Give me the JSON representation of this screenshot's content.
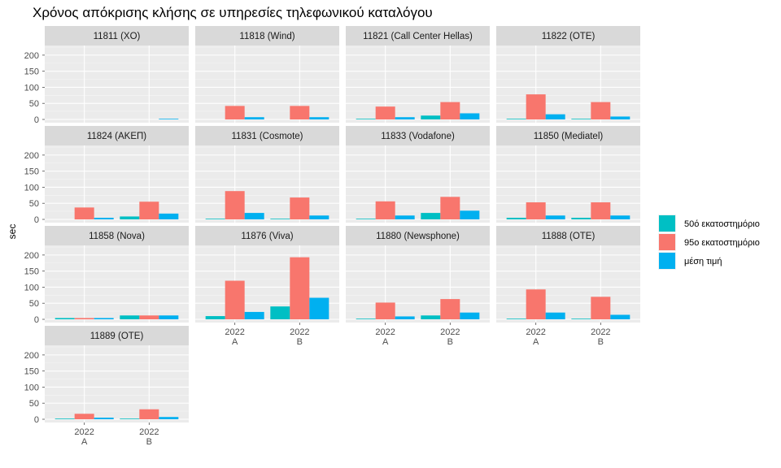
{
  "chart_data": {
    "type": "bar",
    "title": "Χρόνος απόκρισης κλήσης σε υπηρεσίες τηλεφωνικού καταλόγου",
    "xlabel": "",
    "ylabel": "sec",
    "ylim": [
      0,
      230
    ],
    "yticks": [
      0,
      50,
      100,
      150,
      200
    ],
    "categories": [
      "2022\nA",
      "2022\nB"
    ],
    "series_names": [
      "50ό εκατοστημόριο",
      "95ο εκατοστημόριο",
      "μέση τιμή"
    ],
    "colors": [
      "#00BFC4",
      "#F8766D",
      "#00B0F0"
    ],
    "panels": [
      {
        "name": "11811 (XO)",
        "values": [
          [
            null,
            null,
            null
          ],
          [
            null,
            null,
            2
          ]
        ]
      },
      {
        "name": "11818 (Wind)",
        "values": [
          [
            null,
            42,
            7
          ],
          [
            null,
            42,
            7
          ]
        ]
      },
      {
        "name": "11821 (Call Center Hellas)",
        "values": [
          [
            2,
            40,
            7
          ],
          [
            12,
            54,
            19
          ]
        ]
      },
      {
        "name": "11822 (OTE)",
        "values": [
          [
            2,
            78,
            16
          ],
          [
            2,
            54,
            9
          ]
        ]
      },
      {
        "name": "11824 (ΑΚΕΠ)",
        "values": [
          [
            null,
            37,
            5
          ],
          [
            9,
            55,
            18
          ]
        ]
      },
      {
        "name": "11831 (Cosmote)",
        "values": [
          [
            2,
            88,
            20
          ],
          [
            2,
            68,
            12
          ]
        ]
      },
      {
        "name": "11833 (Vodafone)",
        "values": [
          [
            2,
            56,
            12
          ],
          [
            20,
            70,
            27
          ]
        ]
      },
      {
        "name": "11850 (Mediatel)",
        "values": [
          [
            5,
            53,
            12
          ],
          [
            5,
            53,
            12
          ]
        ]
      },
      {
        "name": "11858 (Nova)",
        "values": [
          [
            4,
            4,
            4
          ],
          [
            12,
            12,
            12
          ]
        ]
      },
      {
        "name": "11876 (Viva)",
        "values": [
          [
            10,
            120,
            23
          ],
          [
            40,
            193,
            67
          ]
        ]
      },
      {
        "name": "11880 (Newsphone)",
        "values": [
          [
            2,
            52,
            9
          ],
          [
            12,
            63,
            21
          ]
        ]
      },
      {
        "name": "11888 (OTE)",
        "values": [
          [
            2,
            93,
            21
          ],
          [
            2,
            70,
            14
          ]
        ]
      },
      {
        "name": "11889 (OTE)",
        "values": [
          [
            2,
            17,
            5
          ],
          [
            2,
            31,
            7
          ]
        ]
      }
    ]
  }
}
